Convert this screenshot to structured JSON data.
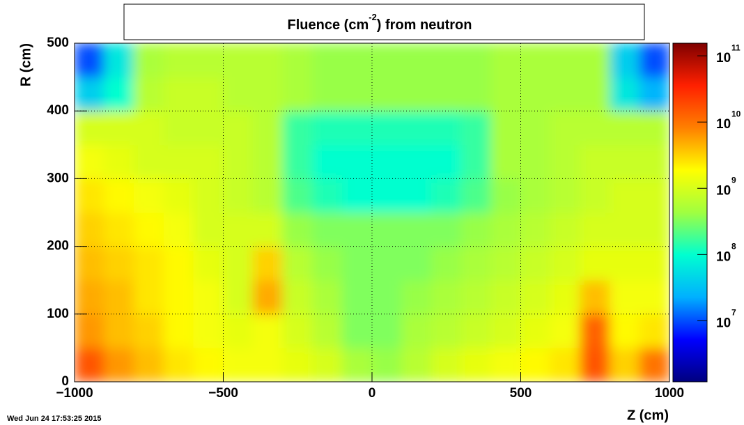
{
  "chart_data": {
    "type": "heatmap",
    "title": {
      "before": "Fluence (cm",
      "superscript": "-2",
      "after": ") from   neutron"
    },
    "x_label": "Z (cm)",
    "y_label": "R (cm)",
    "timestamp": "Wed Jun 24 17:53:25 2015",
    "xlim": [
      -1000,
      1000
    ],
    "xticks": [
      {
        "value": -1000,
        "label": "−1000"
      },
      {
        "value": -500,
        "label": "−500"
      },
      0,
      500,
      1000
    ],
    "ylim": [
      0,
      500
    ],
    "yticks": [
      0,
      100,
      200,
      300,
      400,
      500
    ],
    "grid": true,
    "zlim": [
      1200000,
      155000000000
    ],
    "zlog": true,
    "zticks": [
      {
        "value": 10000000,
        "label": "10",
        "exponent": "7"
      },
      {
        "value": 100000000,
        "label": "10",
        "exponent": "8"
      },
      {
        "value": 1000000000,
        "label": "10",
        "exponent": "9"
      },
      {
        "value": 10000000000,
        "label": "10",
        "exponent": "10"
      },
      {
        "value": 100000000000,
        "label": "10",
        "exponent": "11"
      }
    ],
    "colormap": [
      "#00007f",
      "#0000ff",
      "#00b0ff",
      "#00ffd0",
      "#a0ff40",
      "#ffff00",
      "#ff8000",
      "#ff2000",
      "#7f0000"
    ],
    "x_bins": [
      -1000,
      -900,
      -800,
      -700,
      -600,
      -500,
      -400,
      -300,
      -200,
      -100,
      0,
      100,
      200,
      300,
      400,
      500,
      600,
      700,
      800,
      900,
      1000
    ],
    "y_bins": [
      0,
      50,
      100,
      150,
      200,
      250,
      300,
      350,
      400,
      450,
      500
    ],
    "z": [
      [
        16000000000.0,
        6300000000.0,
        4000000000.0,
        2500000000.0,
        2000000000.0,
        1600000000.0,
        1600000000.0,
        1300000000.0,
        1000000000.0,
        500000000.0,
        400000000.0,
        630000000.0,
        1000000000.0,
        1300000000.0,
        1600000000.0,
        2000000000.0,
        2500000000.0,
        16000000000.0,
        3200000000.0,
        10000000000.0
      ],
      [
        6300000000.0,
        4000000000.0,
        3200000000.0,
        2000000000.0,
        1600000000.0,
        1300000000.0,
        1600000000.0,
        1000000000.0,
        630000000.0,
        320000000.0,
        320000000.0,
        500000000.0,
        630000000.0,
        800000000.0,
        1000000000.0,
        1300000000.0,
        1600000000.0,
        13000000000.0,
        2000000000.0,
        2500000000.0
      ],
      [
        5000000000.0,
        4000000000.0,
        2500000000.0,
        2000000000.0,
        1600000000.0,
        1000000000.0,
        5000000000.0,
        800000000.0,
        500000000.0,
        320000000.0,
        320000000.0,
        400000000.0,
        500000000.0,
        630000000.0,
        800000000.0,
        1000000000.0,
        1300000000.0,
        4000000000.0,
        1600000000.0,
        1600000000.0
      ],
      [
        4000000000.0,
        3200000000.0,
        2500000000.0,
        2000000000.0,
        1300000000.0,
        1000000000.0,
        3200000000.0,
        630000000.0,
        400000000.0,
        320000000.0,
        320000000.0,
        320000000.0,
        400000000.0,
        500000000.0,
        630000000.0,
        800000000.0,
        1000000000.0,
        1300000000.0,
        1300000000.0,
        1300000000.0
      ],
      [
        3200000000.0,
        2500000000.0,
        2000000000.0,
        1600000000.0,
        1000000000.0,
        1000000000.0,
        1000000000.0,
        400000000.0,
        320000000.0,
        320000000.0,
        320000000.0,
        320000000.0,
        320000000.0,
        400000000.0,
        500000000.0,
        630000000.0,
        800000000.0,
        1000000000.0,
        1000000000.0,
        1000000000.0
      ],
      [
        2500000000.0,
        2000000000.0,
        1600000000.0,
        1300000000.0,
        1000000000.0,
        800000000.0,
        630000000.0,
        200000000.0,
        130000000.0,
        100000000.0,
        100000000.0,
        100000000.0,
        130000000.0,
        200000000.0,
        400000000.0,
        500000000.0,
        630000000.0,
        800000000.0,
        1000000000.0,
        1000000000.0
      ],
      [
        1600000000.0,
        1300000000.0,
        1000000000.0,
        1000000000.0,
        1000000000.0,
        800000000.0,
        630000000.0,
        160000000.0,
        100000000.0,
        100000000.0,
        100000000.0,
        100000000.0,
        100000000.0,
        160000000.0,
        500000000.0,
        500000000.0,
        630000000.0,
        800000000.0,
        800000000.0,
        800000000.0
      ],
      [
        1000000000.0,
        1000000000.0,
        1000000000.0,
        800000000.0,
        800000000.0,
        800000000.0,
        630000000.0,
        160000000.0,
        130000000.0,
        130000000.0,
        130000000.0,
        130000000.0,
        130000000.0,
        160000000.0,
        500000000.0,
        500000000.0,
        630000000.0,
        630000000.0,
        630000000.0,
        630000000.0
      ],
      [
        40000000.0,
        100000000.0,
        630000000.0,
        800000000.0,
        800000000.0,
        630000000.0,
        630000000.0,
        500000000.0,
        400000000.0,
        400000000.0,
        400000000.0,
        400000000.0,
        400000000.0,
        400000000.0,
        500000000.0,
        500000000.0,
        500000000.0,
        500000000.0,
        63000000.0,
        25000000.0
      ],
      [
        10000000.0,
        63000000.0,
        500000000.0,
        630000000.0,
        630000000.0,
        630000000.0,
        630000000.0,
        500000000.0,
        400000000.0,
        400000000.0,
        400000000.0,
        400000000.0,
        400000000.0,
        400000000.0,
        500000000.0,
        500000000.0,
        500000000.0,
        500000000.0,
        40000000.0,
        10000000.0
      ]
    ]
  }
}
